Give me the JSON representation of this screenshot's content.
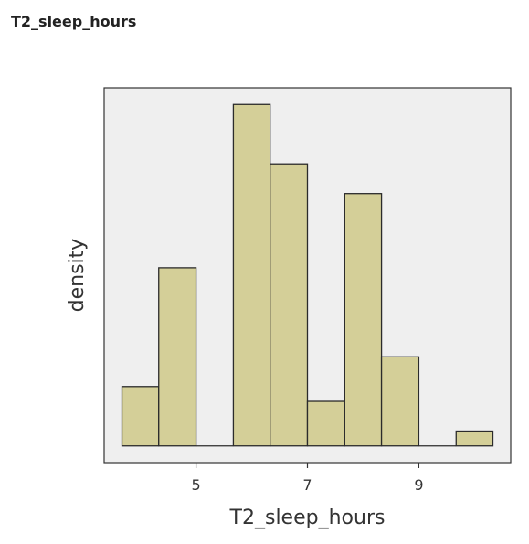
{
  "header": {
    "title": "T2_sleep_hours"
  },
  "colors": {
    "bar_fill": "#D4CF98",
    "bar_stroke": "#2b2b2b",
    "panel_bg": "#EFEFEF",
    "axis": "#333333"
  },
  "chart_data": {
    "type": "bar",
    "subtype": "histogram",
    "xlabel": "T2_sleep_hours",
    "ylabel": "density",
    "x_ticks": [
      5,
      7,
      9
    ],
    "y_ticks_shown": false,
    "grid": false,
    "bins": [
      {
        "x0": 3.67,
        "x1": 4.33,
        "height": 0.16
      },
      {
        "x0": 4.33,
        "x1": 5.0,
        "height": 0.48
      },
      {
        "x0": 5.0,
        "x1": 5.67,
        "height": 0.0
      },
      {
        "x0": 5.67,
        "x1": 6.33,
        "height": 0.92
      },
      {
        "x0": 6.33,
        "x1": 7.0,
        "height": 0.76
      },
      {
        "x0": 7.0,
        "x1": 7.67,
        "height": 0.12
      },
      {
        "x0": 7.67,
        "x1": 8.33,
        "height": 0.68
      },
      {
        "x0": 8.33,
        "x1": 9.0,
        "height": 0.24
      },
      {
        "x0": 9.0,
        "x1": 9.67,
        "height": 0.0
      },
      {
        "x0": 9.67,
        "x1": 10.33,
        "height": 0.04
      }
    ],
    "xlim": [
      3.35,
      10.65
    ],
    "ylim": [
      -0.045,
      0.965
    ]
  }
}
